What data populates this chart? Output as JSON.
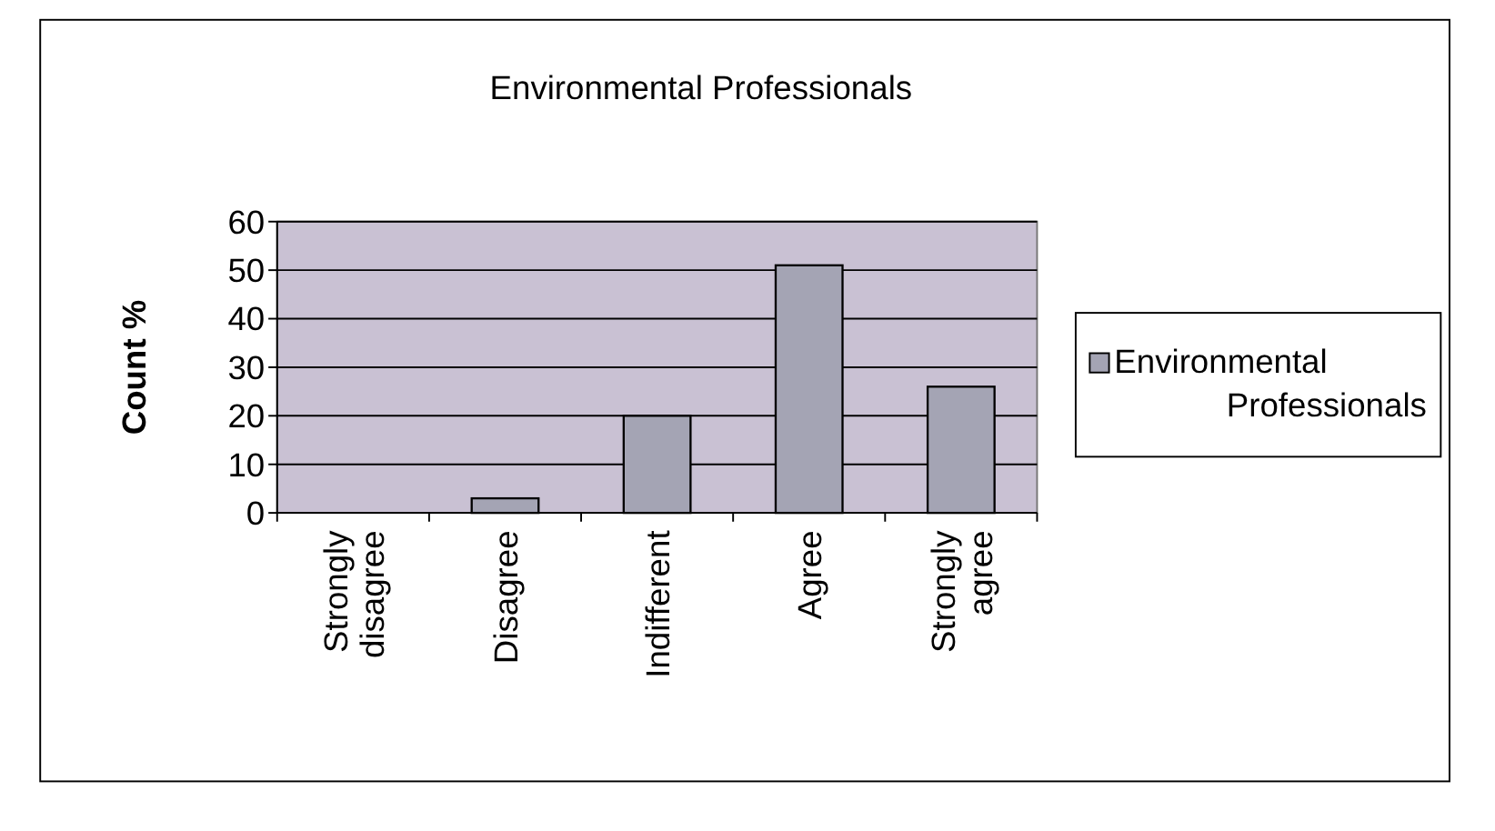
{
  "chart_data": {
    "type": "bar",
    "title": "Environmental Professionals",
    "ylabel": "Count %",
    "categories": [
      "Strongly disagree",
      "Disagree",
      "Indifferent",
      "Agree",
      "Strongly agree"
    ],
    "series": [
      {
        "name": "Environmental Professionals",
        "color": "#a4a4b4",
        "values": [
          0,
          3,
          20,
          51,
          26
        ]
      }
    ],
    "ylim": [
      0,
      60
    ],
    "yticks": [
      0,
      10,
      20,
      30,
      40,
      50,
      60
    ],
    "grid": "y",
    "legend": "right"
  }
}
